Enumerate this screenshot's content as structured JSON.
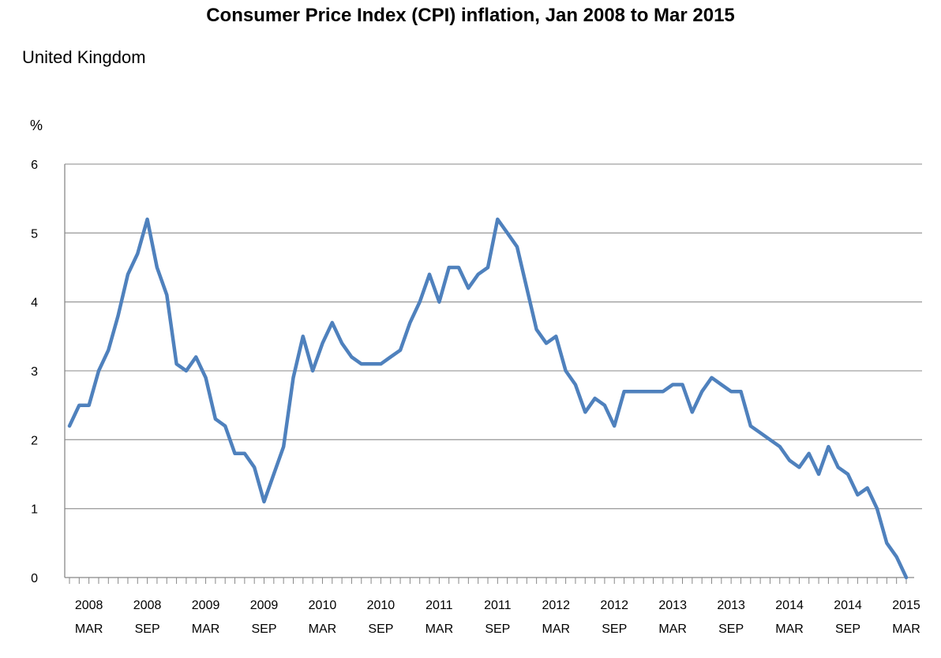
{
  "title": "Consumer Price Index (CPI) inflation, Jan 2008 to Mar 2015",
  "subtitle": "United Kingdom",
  "chart_data": {
    "type": "line",
    "title": "Consumer Price Index (CPI) inflation, Jan 2008 to Mar 2015",
    "subtitle": "United Kingdom",
    "ylabel": "%",
    "xlabel": "",
    "ylim": [
      0,
      6
    ],
    "yticks": [
      0,
      1,
      2,
      3,
      4,
      5,
      6
    ],
    "grid": "horizontal",
    "legend": "none",
    "x_start": "2008-01",
    "x_end": "2015-03",
    "x_tick_labels": [
      {
        "year": "2008",
        "month": "MAR",
        "x": "2008-03"
      },
      {
        "year": "2008",
        "month": "SEP",
        "x": "2008-09"
      },
      {
        "year": "2009",
        "month": "MAR",
        "x": "2009-03"
      },
      {
        "year": "2009",
        "month": "SEP",
        "x": "2009-09"
      },
      {
        "year": "2010",
        "month": "MAR",
        "x": "2010-03"
      },
      {
        "year": "2010",
        "month": "SEP",
        "x": "2010-09"
      },
      {
        "year": "2011",
        "month": "MAR",
        "x": "2011-03"
      },
      {
        "year": "2011",
        "month": "SEP",
        "x": "2011-09"
      },
      {
        "year": "2012",
        "month": "MAR",
        "x": "2012-03"
      },
      {
        "year": "2012",
        "month": "SEP",
        "x": "2012-09"
      },
      {
        "year": "2013",
        "month": "MAR",
        "x": "2013-03"
      },
      {
        "year": "2013",
        "month": "SEP",
        "x": "2013-09"
      },
      {
        "year": "2014",
        "month": "MAR",
        "x": "2014-03"
      },
      {
        "year": "2014",
        "month": "SEP",
        "x": "2014-09"
      },
      {
        "year": "2015",
        "month": "MAR",
        "x": "2015-03"
      }
    ],
    "series": [
      {
        "color": "#4f81bd",
        "x": [
          "2008-01",
          "2008-02",
          "2008-03",
          "2008-04",
          "2008-05",
          "2008-06",
          "2008-07",
          "2008-08",
          "2008-09",
          "2008-10",
          "2008-11",
          "2008-12",
          "2009-01",
          "2009-02",
          "2009-03",
          "2009-04",
          "2009-05",
          "2009-06",
          "2009-07",
          "2009-08",
          "2009-09",
          "2009-10",
          "2009-11",
          "2009-12",
          "2010-01",
          "2010-02",
          "2010-03",
          "2010-04",
          "2010-05",
          "2010-06",
          "2010-07",
          "2010-08",
          "2010-09",
          "2010-10",
          "2010-11",
          "2010-12",
          "2011-01",
          "2011-02",
          "2011-03",
          "2011-04",
          "2011-05",
          "2011-06",
          "2011-07",
          "2011-08",
          "2011-09",
          "2011-10",
          "2011-11",
          "2011-12",
          "2012-01",
          "2012-02",
          "2012-03",
          "2012-04",
          "2012-05",
          "2012-06",
          "2012-07",
          "2012-08",
          "2012-09",
          "2012-10",
          "2012-11",
          "2012-12",
          "2013-01",
          "2013-02",
          "2013-03",
          "2013-04",
          "2013-05",
          "2013-06",
          "2013-07",
          "2013-08",
          "2013-09",
          "2013-10",
          "2013-11",
          "2013-12",
          "2014-01",
          "2014-02",
          "2014-03",
          "2014-04",
          "2014-05",
          "2014-06",
          "2014-07",
          "2014-08",
          "2014-09",
          "2014-10",
          "2014-11",
          "2014-12",
          "2015-01",
          "2015-02",
          "2015-03"
        ],
        "values": [
          2.2,
          2.5,
          2.5,
          3.0,
          3.3,
          3.8,
          4.4,
          4.7,
          5.2,
          4.5,
          4.1,
          3.1,
          3.0,
          3.2,
          2.9,
          2.3,
          2.2,
          1.8,
          1.8,
          1.6,
          1.1,
          1.5,
          1.9,
          2.9,
          3.5,
          3.0,
          3.4,
          3.7,
          3.4,
          3.2,
          3.1,
          3.1,
          3.1,
          3.2,
          3.3,
          3.7,
          4.0,
          4.4,
          4.0,
          4.5,
          4.5,
          4.2,
          4.4,
          4.5,
          5.2,
          5.0,
          4.8,
          4.2,
          3.6,
          3.4,
          3.5,
          3.0,
          2.8,
          2.4,
          2.6,
          2.5,
          2.2,
          2.7,
          2.7,
          2.7,
          2.7,
          2.7,
          2.8,
          2.8,
          2.4,
          2.7,
          2.9,
          2.8,
          2.7,
          2.7,
          2.2,
          2.1,
          2.0,
          1.9,
          1.7,
          1.6,
          1.8,
          1.5,
          1.9,
          1.6,
          1.5,
          1.2,
          1.3,
          1.0,
          0.5,
          0.3,
          0.0
        ]
      }
    ]
  }
}
